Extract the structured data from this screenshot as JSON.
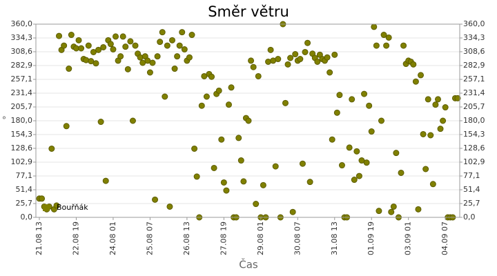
{
  "chart_data": {
    "type": "scatter",
    "title": "Směr větru",
    "x_label": "Čas",
    "y_label": "°",
    "color": "#808000",
    "grid": true,
    "legend": "lower left",
    "xlim": [
      "21.08 13",
      "04.09 17"
    ],
    "xticks": [
      "21.08 13",
      "22.08 19",
      "24.08 01",
      "25.08 07",
      "26.08 13",
      "27.08 19",
      "29.08 01",
      "30.08 07",
      "31.08 13",
      "01.09 19",
      "03.09 01",
      "04.09 07"
    ],
    "ylim": [
      0,
      360
    ],
    "yticks": [
      {
        "value": 0,
        "label": "0,0"
      },
      {
        "value": 25.7,
        "label": "25,7"
      },
      {
        "value": 51.4,
        "label": "51,4"
      },
      {
        "value": 77.1,
        "label": "77,1"
      },
      {
        "value": 102.9,
        "label": "102,9"
      },
      {
        "value": 128.6,
        "label": "128,6"
      },
      {
        "value": 154.3,
        "label": "154,3"
      },
      {
        "value": 180,
        "label": "180,0"
      },
      {
        "value": 205.7,
        "label": "205,7"
      },
      {
        "value": 231.4,
        "label": "231,4"
      },
      {
        "value": 257.1,
        "label": "257,1"
      },
      {
        "value": 282.9,
        "label": "282,9"
      },
      {
        "value": 308.6,
        "label": "308,6"
      },
      {
        "value": 334.3,
        "label": "334,3"
      },
      {
        "value": 360,
        "label": "360,0"
      }
    ],
    "series": [
      {
        "name": "Bouřňák",
        "color": "#808000",
        "x": [
          "21.08 13",
          "21.08 15",
          "21.08 17",
          "21.08 19",
          "21.08 21",
          "21.08 23",
          "22.08 01",
          "22.08 03",
          "22.08 05",
          "22.08 07",
          "22.08 09",
          "22.08 11",
          "22.08 13",
          "22.08 15",
          "22.08 17",
          "22.08 19",
          "22.08 21",
          "22.08 23",
          "23.08 01",
          "23.08 03",
          "23.08 05",
          "23.08 07",
          "23.08 09",
          "23.08 11",
          "23.08 13",
          "23.08 15",
          "23.08 17",
          "23.08 19",
          "23.08 21",
          "23.08 23",
          "24.08 01",
          "24.08 03",
          "24.08 05",
          "24.08 07",
          "24.08 09",
          "24.08 11",
          "24.08 13",
          "24.08 15",
          "24.08 17",
          "24.08 19",
          "24.08 21",
          "24.08 23",
          "25.08 01",
          "25.08 03",
          "25.08 05",
          "25.08 07",
          "25.08 09",
          "25.08 11",
          "25.08 13",
          "25.08 15",
          "25.08 17",
          "25.08 19",
          "25.08 21",
          "25.08 23",
          "26.08 01",
          "26.08 03",
          "26.08 05",
          "26.08 07",
          "26.08 09",
          "26.08 11",
          "26.08 13",
          "26.08 15",
          "26.08 17",
          "26.08 19",
          "26.08 21",
          "26.08 23",
          "27.08 01",
          "27.08 03",
          "27.08 05",
          "27.08 07",
          "27.08 09",
          "27.08 11",
          "27.08 13",
          "27.08 15",
          "27.08 17",
          "27.08 19",
          "27.08 21",
          "27.08 23",
          "28.08 01",
          "28.08 03",
          "28.08 05",
          "28.08 07",
          "28.08 09",
          "28.08 11",
          "28.08 13",
          "28.08 15",
          "28.08 17",
          "28.08 19",
          "28.08 21",
          "28.08 23",
          "29.08 01",
          "29.08 03",
          "29.08 05",
          "29.08 07",
          "29.08 09",
          "29.08 11",
          "29.08 13",
          "29.08 15",
          "29.08 17",
          "29.08 19",
          "29.08 21",
          "29.08 23",
          "30.08 01",
          "30.08 03",
          "30.08 05",
          "30.08 07",
          "30.08 09",
          "30.08 11",
          "30.08 13",
          "30.08 15",
          "30.08 17",
          "30.08 19",
          "30.08 21",
          "30.08 23",
          "31.08 01",
          "31.08 03",
          "31.08 05",
          "31.08 07",
          "31.08 09",
          "31.08 11",
          "31.08 13",
          "31.08 15",
          "31.08 17",
          "31.08 19",
          "31.08 21",
          "31.08 23",
          "01.09 01",
          "01.09 03",
          "01.09 05",
          "01.09 07",
          "01.09 09",
          "01.09 11",
          "01.09 13",
          "01.09 15",
          "01.09 17",
          "01.09 19",
          "01.09 21",
          "01.09 23",
          "02.09 01",
          "02.09 03",
          "02.09 05",
          "02.09 07",
          "02.09 09",
          "02.09 11",
          "02.09 13",
          "02.09 15",
          "02.09 17",
          "02.09 19",
          "02.09 21",
          "02.09 23",
          "03.09 01",
          "03.09 03",
          "03.09 05",
          "03.09 07",
          "03.09 09",
          "03.09 11",
          "03.09 13",
          "03.09 15",
          "03.09 17",
          "03.09 19",
          "03.09 21",
          "03.09 23",
          "04.09 01",
          "04.09 03",
          "04.09 05",
          "04.09 07",
          "04.09 09",
          "04.09 11",
          "04.09 13",
          "04.09 15",
          "04.09 17"
        ],
        "values": [
          35,
          35,
          20,
          15,
          20,
          128,
          15,
          22,
          338,
          312,
          320,
          170,
          277,
          340,
          318,
          315,
          330,
          315,
          295,
          293,
          320,
          291,
          308,
          287,
          312,
          178,
          317,
          68,
          330,
          323,
          313,
          337,
          292,
          300,
          337,
          318,
          276,
          328,
          180,
          320,
          305,
          298,
          288,
          300,
          292,
          270,
          288,
          33,
          300,
          327,
          345,
          225,
          320,
          20,
          330,
          277,
          300,
          320,
          345,
          313,
          292,
          298,
          340,
          128,
          76,
          0,
          208,
          263,
          225,
          267,
          262,
          92,
          230,
          236,
          145,
          65,
          50,
          210,
          242,
          0,
          0,
          148,
          106,
          67,
          185,
          180,
          292,
          280,
          25,
          263,
          0,
          60,
          0,
          290,
          312,
          292,
          95,
          295,
          0,
          360,
          213,
          285,
          297,
          10,
          304,
          292,
          295,
          100,
          308,
          325,
          66,
          305,
          297,
          290,
          303,
          295,
          292,
          298,
          270,
          145,
          303,
          195,
          228,
          97,
          0,
          0,
          130,
          220,
          70,
          123,
          77,
          106,
          230,
          102,
          208,
          160,
          355,
          320,
          12,
          180,
          340,
          320,
          335,
          10,
          20,
          120,
          0,
          83,
          320,
          286,
          292,
          290,
          285,
          253,
          15,
          265,
          155,
          90,
          220,
          153,
          62,
          210,
          220,
          165,
          180,
          205,
          0,
          0,
          0,
          222,
          222
        ]
      }
    ]
  }
}
